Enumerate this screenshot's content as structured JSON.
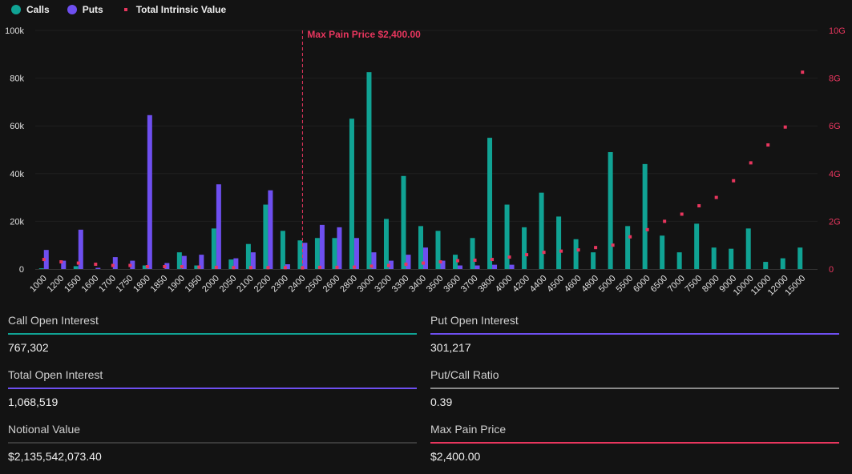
{
  "colors": {
    "calls": "#10a394",
    "puts": "#6e4ff0",
    "intrinsic": "#e8365e",
    "background": "#131313"
  },
  "legend": {
    "calls": "Calls",
    "puts": "Puts",
    "intrinsic": "Total Intrinsic Value"
  },
  "chart_data": {
    "type": "bar",
    "categories": [
      "1000",
      "1200",
      "1500",
      "1600",
      "1700",
      "1750",
      "1800",
      "1850",
      "1900",
      "1950",
      "2000",
      "2050",
      "2100",
      "2200",
      "2300",
      "2400",
      "2500",
      "2600",
      "2800",
      "3000",
      "3200",
      "3300",
      "3400",
      "3500",
      "3600",
      "3700",
      "3800",
      "4000",
      "4200",
      "4400",
      "4500",
      "4600",
      "4800",
      "5000",
      "5500",
      "6000",
      "6500",
      "7000",
      "7500",
      "8000",
      "9000",
      "10000",
      "11000",
      "12000",
      "15000"
    ],
    "series": [
      {
        "name": "Calls",
        "type": "bar",
        "axis": "left",
        "values": [
          300,
          0,
          1200,
          0,
          0,
          0,
          1500,
          0,
          7000,
          1500,
          17000,
          4000,
          10500,
          27000,
          16000,
          12000,
          13000,
          13000,
          63000,
          82500,
          21000,
          39000,
          18000,
          16000,
          6000,
          13000,
          55000,
          27000,
          17500,
          32000,
          22000,
          12500,
          7000,
          49000,
          18000,
          44000,
          14000,
          7000,
          19000,
          9000,
          8500,
          17000,
          3000,
          4500,
          9000
        ]
      },
      {
        "name": "Puts",
        "type": "bar",
        "axis": "left",
        "values": [
          8000,
          3500,
          16500,
          500,
          5000,
          3500,
          64500,
          2500,
          5500,
          6000,
          35500,
          4500,
          7000,
          33000,
          2000,
          11000,
          18500,
          17500,
          13000,
          7000,
          3500,
          6000,
          9000,
          3500,
          1500,
          1500,
          1800,
          1800,
          0,
          0,
          0,
          0,
          0,
          0,
          0,
          0,
          0,
          0,
          0,
          0,
          0,
          0,
          0,
          0,
          0
        ]
      },
      {
        "name": "Total Intrinsic Value",
        "type": "scatter",
        "axis": "right",
        "values": [
          0.4,
          0.3,
          0.25,
          0.2,
          0.15,
          0.15,
          0.1,
          0.1,
          0.1,
          0.08,
          0.07,
          0.06,
          0.06,
          0.06,
          0.06,
          0.05,
          0.07,
          0.07,
          0.08,
          0.12,
          0.15,
          0.2,
          0.25,
          0.3,
          0.35,
          0.37,
          0.4,
          0.5,
          0.6,
          0.7,
          0.75,
          0.8,
          0.9,
          1.0,
          1.35,
          1.65,
          2.0,
          2.3,
          2.65,
          3.0,
          3.7,
          4.45,
          5.2,
          5.95,
          8.25
        ]
      }
    ],
    "y_left": {
      "range": [
        0,
        100000
      ],
      "ticks": [
        "0",
        "20k",
        "40k",
        "60k",
        "80k",
        "100k"
      ]
    },
    "y_right": {
      "range": [
        0,
        10
      ],
      "unit": "G",
      "ticks": [
        "0",
        "2G",
        "4G",
        "6G",
        "8G",
        "10G"
      ]
    },
    "grid": true,
    "legend_position": "top-left",
    "annotation": {
      "category": "2400",
      "label": "Max Pain Price $2,400.00"
    }
  },
  "stats": [
    {
      "title": "Call Open Interest",
      "value": "767,302",
      "color": "#10a394"
    },
    {
      "title": "Put Open Interest",
      "value": "301,217",
      "color": "#6e4ff0"
    },
    {
      "title": "Total Open Interest",
      "value": "1,068,519",
      "color": "#6e4ff0"
    },
    {
      "title": "Put/Call Ratio",
      "value": "0.39",
      "color": "#8a8a8a"
    },
    {
      "title": "Notional Value",
      "value": "$2,135,542,073.40",
      "color": "#3a3a3a"
    },
    {
      "title": "Max Pain Price",
      "value": "$2,400.00",
      "color": "#e8365e"
    }
  ]
}
